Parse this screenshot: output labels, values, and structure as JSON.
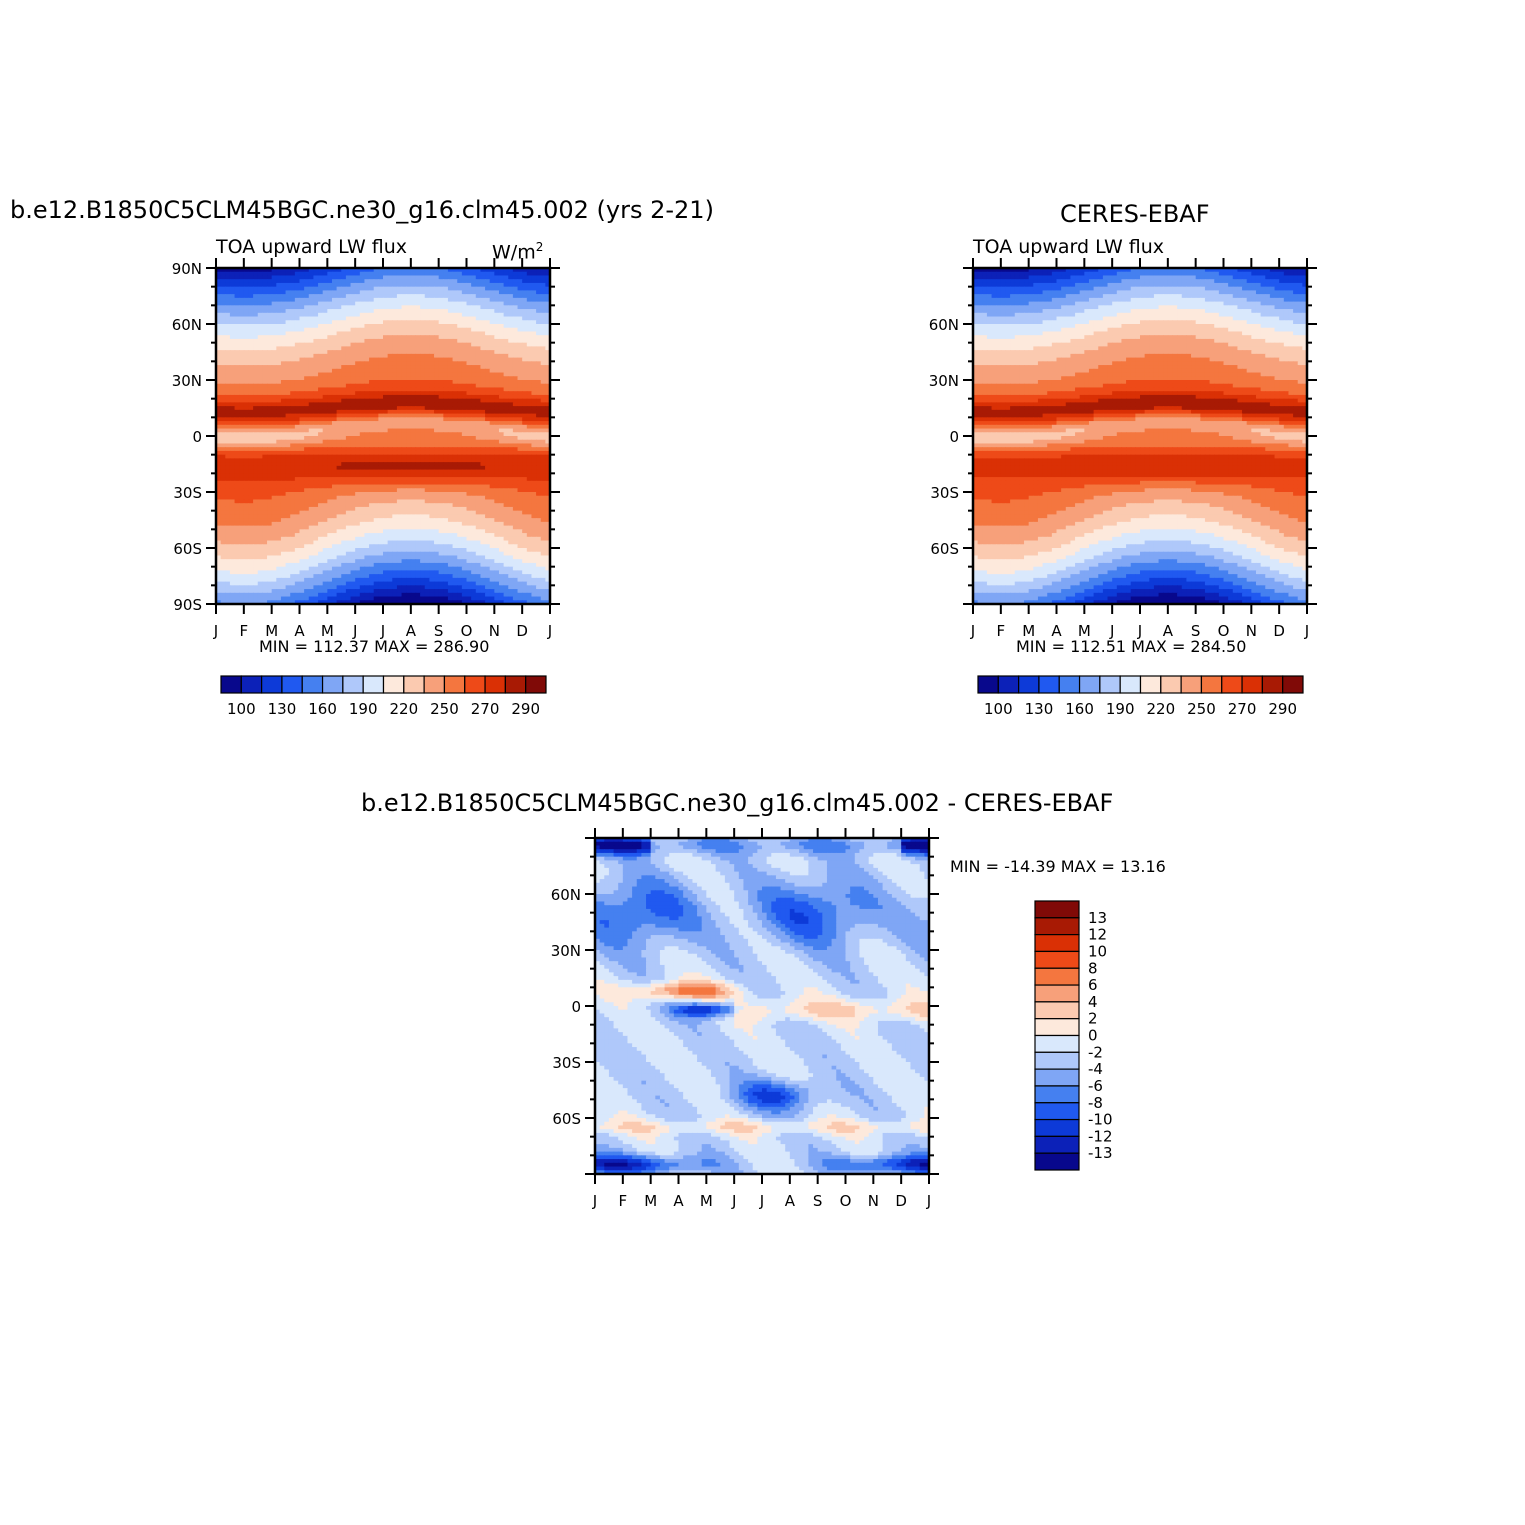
{
  "colors": {
    "scale16": [
      "#08088c",
      "#0c21b8",
      "#0d3ad8",
      "#2059f0",
      "#4580f0",
      "#7fa6f5",
      "#afc8fa",
      "#d9e8fc",
      "#fde9dc",
      "#fbcab0",
      "#f7a07a",
      "#f4763f",
      "#ee4a18",
      "#da3005",
      "#a81a04",
      "#800a07"
    ],
    "scale14": [
      "#08088c",
      "#0c21b8",
      "#0d3ad8",
      "#2059f0",
      "#4580f0",
      "#7fa6f5",
      "#afc8fa",
      "#d9e8fc",
      "#fde9dc",
      "#fbcab0",
      "#f7a07a",
      "#f4763f",
      "#ee4a18",
      "#da3005",
      "#a81a04",
      "#800a07"
    ]
  },
  "chart_data": [
    {
      "id": "model",
      "type": "heatmap",
      "title": "b.e12.B1850C5CLM45BGC.ne30_g16.clm45.002 (yrs 2-21)",
      "left_label": "TOA upward LW flux",
      "units": "W/m",
      "units_sup": "2",
      "x_ticks": [
        "J",
        "F",
        "M",
        "A",
        "M",
        "J",
        "J",
        "A",
        "S",
        "O",
        "N",
        "D",
        "J"
      ],
      "y_ticks": [
        "90N",
        "60N",
        "30N",
        "0",
        "30S",
        "60S",
        "90S"
      ],
      "ylim": [
        -90,
        90
      ],
      "min_label": "MIN = 112.37  MAX = 286.90",
      "min": 112.37,
      "max": 286.9,
      "colorbar_levels": [
        100,
        110,
        120,
        130,
        140,
        150,
        160,
        170,
        180,
        190,
        200,
        210,
        220,
        230,
        240,
        250,
        260,
        270,
        280,
        290,
        300
      ],
      "colorbar_labels": [
        "100",
        "130",
        "160",
        "190",
        "220",
        "250",
        "270",
        "290"
      ]
    },
    {
      "id": "obs",
      "type": "heatmap",
      "title": "CERES-EBAF",
      "left_label": "TOA upward LW flux",
      "x_ticks": [
        "J",
        "F",
        "M",
        "A",
        "M",
        "J",
        "J",
        "A",
        "S",
        "O",
        "N",
        "D",
        "J"
      ],
      "y_ticks": [
        "60N",
        "30N",
        "0",
        "30S",
        "60S"
      ],
      "ylim": [
        -90,
        90
      ],
      "min_label": "MIN = 112.51  MAX = 284.50",
      "min": 112.51,
      "max": 284.5,
      "colorbar_labels": [
        "100",
        "130",
        "160",
        "190",
        "220",
        "250",
        "270",
        "290"
      ]
    },
    {
      "id": "diff",
      "type": "heatmap",
      "title": "b.e12.B1850C5CLM45BGC.ne30_g16.clm45.002 - CERES-EBAF",
      "x_ticks": [
        "J",
        "F",
        "M",
        "A",
        "M",
        "J",
        "J",
        "A",
        "S",
        "O",
        "N",
        "D",
        "J"
      ],
      "y_ticks": [
        "60N",
        "30N",
        "0",
        "30S",
        "60S"
      ],
      "ylim": [
        -90,
        90
      ],
      "min_label": "MIN = -14.39 MAX =   13.16",
      "min": -14.39,
      "max": 13.16,
      "colorbar_labels": [
        "13",
        "12",
        "10",
        "8",
        "6",
        "4",
        "2",
        "0",
        "-2",
        "-4",
        "-6",
        "-8",
        "-10",
        "-12",
        "-13"
      ]
    }
  ]
}
